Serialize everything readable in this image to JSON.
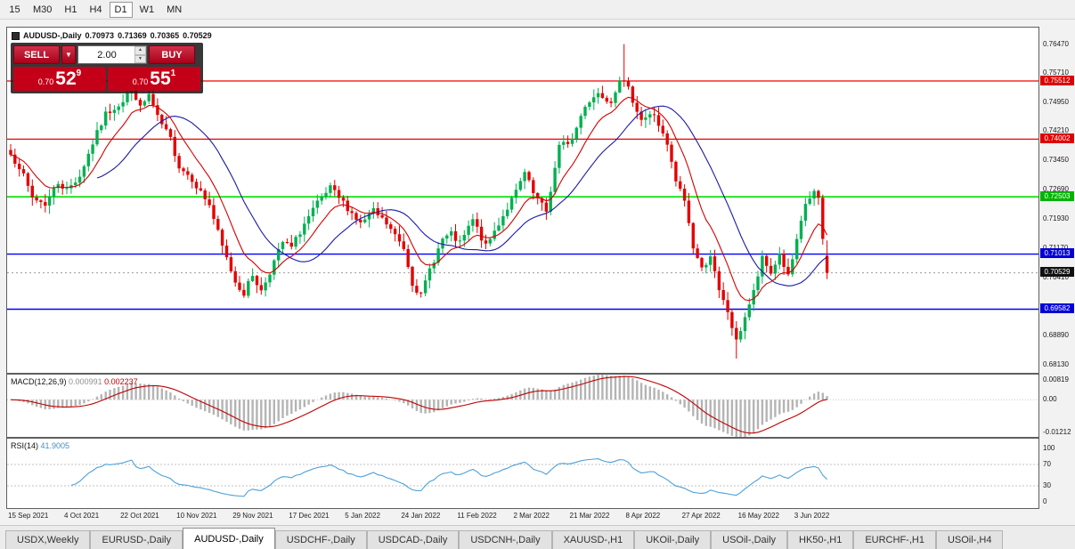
{
  "toolbar": {
    "timeframes": [
      "15",
      "M30",
      "H1",
      "H4",
      "D1",
      "W1",
      "MN"
    ],
    "active_timeframe": "D1"
  },
  "chart": {
    "title_symbol": "AUDUSD-,Daily",
    "ohlc": {
      "open": "0.70973",
      "high": "0.71369",
      "low": "0.70365",
      "close": "0.70529"
    },
    "price_max": 0.769,
    "price_min": 0.6793,
    "candle_count": 190,
    "candle_step": 4.85,
    "left_pad": 4,
    "up_color": "#00b050",
    "down_color": "#e30000",
    "ma_fast_color": "#d40000",
    "ma_slow_color": "#1a1aa6",
    "price_waypoints": [
      [
        0,
        0.736
      ],
      [
        2,
        0.733
      ],
      [
        5,
        0.7248
      ],
      [
        8,
        0.7232
      ],
      [
        11,
        0.7288
      ],
      [
        13,
        0.7268
      ],
      [
        16,
        0.7305
      ],
      [
        19,
        0.739
      ],
      [
        22,
        0.7465
      ],
      [
        26,
        0.75
      ],
      [
        28,
        0.754
      ],
      [
        30,
        0.748
      ],
      [
        32,
        0.7515
      ],
      [
        34,
        0.7455
      ],
      [
        37,
        0.74
      ],
      [
        39,
        0.733
      ],
      [
        42,
        0.7298
      ],
      [
        44,
        0.7262
      ],
      [
        46,
        0.723
      ],
      [
        49,
        0.712
      ],
      [
        52,
        0.703
      ],
      [
        54,
        0.7
      ],
      [
        56,
        0.7048
      ],
      [
        58,
        0.7005
      ],
      [
        61,
        0.7082
      ],
      [
        63,
        0.7132
      ],
      [
        65,
        0.7118
      ],
      [
        68,
        0.718
      ],
      [
        71,
        0.7232
      ],
      [
        74,
        0.7272
      ],
      [
        78,
        0.7222
      ],
      [
        81,
        0.718
      ],
      [
        84,
        0.7212
      ],
      [
        87,
        0.718
      ],
      [
        91,
        0.7118
      ],
      [
        93,
        0.7028
      ],
      [
        95,
        0.6992
      ],
      [
        97,
        0.7062
      ],
      [
        100,
        0.714
      ],
      [
        102,
        0.7152
      ],
      [
        104,
        0.7128
      ],
      [
        107,
        0.719
      ],
      [
        110,
        0.712
      ],
      [
        113,
        0.7182
      ],
      [
        117,
        0.7262
      ],
      [
        119,
        0.7312
      ],
      [
        121,
        0.7258
      ],
      [
        124,
        0.7212
      ],
      [
        127,
        0.738
      ],
      [
        130,
        0.74
      ],
      [
        133,
        0.749
      ],
      [
        136,
        0.752
      ],
      [
        139,
        0.75
      ],
      [
        141,
        0.756
      ],
      [
        143,
        0.7528
      ],
      [
        146,
        0.7452
      ],
      [
        149,
        0.7465
      ],
      [
        152,
        0.7382
      ],
      [
        154,
        0.729
      ],
      [
        156,
        0.7242
      ],
      [
        158,
        0.712
      ],
      [
        160,
        0.7062
      ],
      [
        162,
        0.71
      ],
      [
        164,
        0.7002
      ],
      [
        166,
        0.6952
      ],
      [
        168,
        0.6872
      ],
      [
        170,
        0.694
      ],
      [
        172,
        0.7002
      ],
      [
        174,
        0.7088
      ],
      [
        176,
        0.7052
      ],
      [
        178,
        0.7102
      ],
      [
        180,
        0.7042
      ],
      [
        182,
        0.7132
      ],
      [
        184,
        0.7232
      ],
      [
        186,
        0.7262
      ],
      [
        187,
        0.724
      ],
      [
        188,
        0.714
      ],
      [
        189,
        0.7053
      ]
    ],
    "spikes": [
      {
        "i": 142,
        "high": 0.7647
      },
      {
        "i": 168,
        "low": 0.683
      }
    ],
    "last_candle": {
      "open": 0.70973,
      "high": 0.71369,
      "low": 0.70365,
      "close": 0.70529
    },
    "levels": [
      {
        "price": 0.75512,
        "label": "0.75512",
        "line": "#f00000",
        "box": "#e00000",
        "width": 1.2
      },
      {
        "price": 0.74002,
        "label": "0.74002",
        "line": "#f00000",
        "box": "#e00000",
        "width": 1.2
      },
      {
        "price": 0.72503,
        "label": "0.72503",
        "line": "#00e000",
        "box": "#00b400",
        "width": 1.6
      },
      {
        "price": 0.71013,
        "label": "0.71013",
        "line": "#0000ff",
        "box": "#0000d8",
        "width": 1.4
      },
      {
        "price": 0.69582,
        "label": "0.69582",
        "line": "#0000ff",
        "box": "#0000d8",
        "width": 1.4
      }
    ],
    "current_price": {
      "price": 0.70529,
      "label": "0.70529",
      "box": "#111111"
    },
    "axis_ticks": [
      {
        "p": 0.7647,
        "label": "0.76470"
      },
      {
        "p": 0.7571,
        "label": "0.75710"
      },
      {
        "p": 0.7495,
        "label": "0.74950"
      },
      {
        "p": 0.7421,
        "label": "0.74210"
      },
      {
        "p": 0.7345,
        "label": "0.73450"
      },
      {
        "p": 0.7269,
        "label": "0.72690"
      },
      {
        "p": 0.7193,
        "label": "0.71930"
      },
      {
        "p": 0.7117,
        "label": "0.71170"
      },
      {
        "p": 0.7041,
        "label": "0.70410"
      },
      {
        "p": 0.6965,
        "label": "0.69650"
      },
      {
        "p": 0.6889,
        "label": "0.68890"
      },
      {
        "p": 0.6813,
        "label": "0.68130"
      }
    ],
    "date_labels": [
      {
        "i": 0,
        "label": "15 Sep 2021"
      },
      {
        "i": 13,
        "label": "4 Oct 2021"
      },
      {
        "i": 26,
        "label": "22 Oct 2021"
      },
      {
        "i": 39,
        "label": "10 Nov 2021"
      },
      {
        "i": 52,
        "label": "29 Nov 2021"
      },
      {
        "i": 65,
        "label": "17 Dec 2021"
      },
      {
        "i": 78,
        "label": "5 Jan 2022"
      },
      {
        "i": 91,
        "label": "24 Jan 2022"
      },
      {
        "i": 104,
        "label": "11 Feb 2022"
      },
      {
        "i": 117,
        "label": "2 Mar 2022"
      },
      {
        "i": 130,
        "label": "21 Mar 2022"
      },
      {
        "i": 143,
        "label": "8 Apr 2022"
      },
      {
        "i": 156,
        "label": "27 Apr 2022"
      },
      {
        "i": 169,
        "label": "16 May 2022"
      },
      {
        "i": 182,
        "label": "3 Jun 2022"
      }
    ]
  },
  "macd": {
    "label": "MACD(12,26,9)",
    "value_main": "0.000991",
    "value_signal": "0.002237",
    "scale_max": 0.00819,
    "scale_min": -0.01212,
    "axis": [
      {
        "v": 0.00819,
        "label": "0.00819"
      },
      {
        "v": 0,
        "label": "0.00"
      },
      {
        "v": -0.01212,
        "label": "-0.01212"
      }
    ],
    "hist_color": "#b4b4b4",
    "signal_color": "#c00000"
  },
  "rsi": {
    "label": "RSI(14)",
    "value": "41.9005",
    "line_color": "#4da0d8",
    "levels": [
      70,
      30
    ],
    "axis": [
      {
        "v": 100,
        "label": "100"
      },
      {
        "v": 70,
        "label": "70"
      },
      {
        "v": 30,
        "label": "30"
      },
      {
        "v": 0,
        "label": "0"
      }
    ]
  },
  "trade_panel": {
    "sell_label": "SELL",
    "buy_label": "BUY",
    "volume": "2.00",
    "bid": {
      "small": "0.70",
      "big": "52",
      "sup": "9"
    },
    "ask": {
      "small": "0.70",
      "big": "55",
      "sup": "1"
    }
  },
  "tabs": {
    "active_index": 2,
    "items": [
      "USDX,Weekly",
      "EURUSD-,Daily",
      "AUDUSD-,Daily",
      "USDCHF-,Daily",
      "USDCAD-,Daily",
      "USDCNH-,Daily",
      "XAUUSD-,H1",
      "UKOil-,Daily",
      "USOil-,Daily",
      "HK50-,H1",
      "EURCHF-,H1",
      "USOil-,H4"
    ]
  }
}
